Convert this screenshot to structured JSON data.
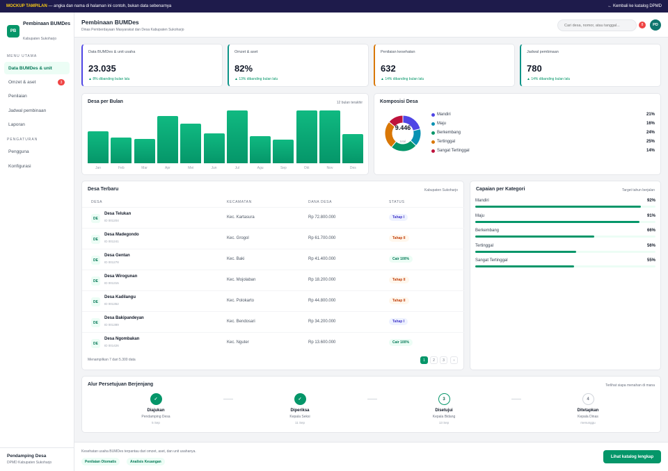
{
  "banner": {
    "tag": "MOCKUP TAMPILAN",
    "text": "— angka dan nama di halaman ini contoh, bukan data sebenarnya",
    "back": "← Kembali ke katalog DPMD"
  },
  "sidebar": {
    "logo": "PB",
    "title": "Pembinaan BUMDes",
    "subtitle": "Kabupaten Sukoharjo",
    "section_main": "MENU UTAMA",
    "section_settings": "PENGATURAN",
    "items": [
      {
        "label": "Data BUMDes & unit",
        "active": true
      },
      {
        "label": "Omzet & aset",
        "badge": "3"
      },
      {
        "label": "Penilaian"
      },
      {
        "label": "Jadwal pembinaan"
      },
      {
        "label": "Laporan"
      }
    ],
    "settings": [
      {
        "label": "Pengguna"
      },
      {
        "label": "Konfigurasi"
      }
    ],
    "user": {
      "name": "Pendamping Desa",
      "role": "DPMD Kabupaten Sukoharjo"
    }
  },
  "header": {
    "title": "Pembinaan BUMDes",
    "subtitle": "Dinas Pemberdayaan Masyarakat dan Desa Kabupaten Sukoharjo",
    "search_placeholder": "Cari desa, nomor, atau tanggal...",
    "notif": "8",
    "avatar": "PD"
  },
  "kpis": [
    {
      "label": "Data BUMDes & unit usaha",
      "value": "23.035",
      "trend": "▲ 8% dibanding bulan lalu",
      "color": "#4f46e5"
    },
    {
      "label": "Omzet & aset",
      "value": "82%",
      "trend": "▲ 13% dibanding bulan lalu",
      "color": "#0d9488"
    },
    {
      "label": "Penilaian kesehatan",
      "value": "632",
      "trend": "▲ 14% dibanding bulan lalu",
      "color": "#d97706"
    },
    {
      "label": "Jadwal pembinaan",
      "value": "780",
      "trend": "▲ 14% dibanding bulan lalu",
      "color": "#0d9488"
    }
  ],
  "bar_chart": {
    "title": "Desa per Bulan",
    "note": "12 bulan terakhir"
  },
  "donut": {
    "title": "Komposisi Desa",
    "total": "9.446",
    "total_label": "total"
  },
  "chart_data": [
    {
      "type": "bar",
      "categories": [
        "Jan",
        "Feb",
        "Mar",
        "Apr",
        "Mei",
        "Jun",
        "Jul",
        "Agu",
        "Sep",
        "Okt",
        "Nov",
        "Des"
      ],
      "values": [
        60,
        49,
        46,
        89,
        75,
        57,
        100,
        51,
        45,
        100,
        100,
        55
      ],
      "ylim": [
        0,
        100
      ]
    },
    {
      "type": "pie",
      "categories": [
        "Mandiri",
        "Maju",
        "Berkembang",
        "Tertinggal",
        "Sangat Tertinggal"
      ],
      "labels": [
        "21%",
        "16%",
        "24%",
        "25%",
        "14%"
      ],
      "values": [
        21,
        16,
        24,
        25,
        14
      ],
      "colors": [
        "#4f46e5",
        "#0891b2",
        "#059669",
        "#d97706",
        "#be123c"
      ]
    }
  ],
  "table": {
    "title": "Desa Terbaru",
    "note": "Kabupaten Sukoharjo",
    "headers": [
      "DESA",
      "KECAMATAN",
      "DANA DESA",
      "STATUS"
    ],
    "rows": [
      {
        "ini": "DE",
        "name": "Desa Telukan",
        "id": "ID 001204",
        "kec": "Kec. Kartasura",
        "dana": "Rp 72.800.000",
        "status": "Tahap I",
        "kind": "a"
      },
      {
        "ini": "DE",
        "name": "Desa Madegondo",
        "id": "ID 001241",
        "kec": "Kec. Grogol",
        "dana": "Rp 61.700.000",
        "status": "Tahap II",
        "kind": "b"
      },
      {
        "ini": "DE",
        "name": "Desa Gentan",
        "id": "ID 001278",
        "kec": "Kec. Baki",
        "dana": "Rp 41.400.000",
        "status": "Cair 100%",
        "kind": "c"
      },
      {
        "ini": "DE",
        "name": "Desa Wirogunan",
        "id": "ID 001315",
        "kec": "Kec. Mojolaban",
        "dana": "Rp 18.200.000",
        "status": "Tahap II",
        "kind": "b"
      },
      {
        "ini": "DE",
        "name": "Desa Kadilangu",
        "id": "ID 001352",
        "kec": "Kec. Polokarto",
        "dana": "Rp 44.800.000",
        "status": "Tahap II",
        "kind": "b"
      },
      {
        "ini": "DE",
        "name": "Desa Bakipandeyan",
        "id": "ID 001389",
        "kec": "Kec. Bendosari",
        "dana": "Rp 34.200.000",
        "status": "Tahap I",
        "kind": "a"
      },
      {
        "ini": "DE",
        "name": "Desa Ngombakan",
        "id": "ID 001426",
        "kec": "Kec. Nguter",
        "dana": "Rp 13.600.000",
        "status": "Cair 100%",
        "kind": "c"
      }
    ],
    "summary": "Menampilkan 7 dari 5.300 data",
    "pages": [
      "1",
      "2",
      "3",
      "›"
    ]
  },
  "progress": {
    "title": "Capaian per Kategori",
    "note": "Target tahun berjalan",
    "items": [
      {
        "label": "Mandiri",
        "value": "92%",
        "pct": 92
      },
      {
        "label": "Maju",
        "value": "91%",
        "pct": 91
      },
      {
        "label": "Berkembang",
        "value": "66%",
        "pct": 66
      },
      {
        "label": "Tertinggal",
        "value": "56%",
        "pct": 56
      },
      {
        "label": "Sangat Tertinggal",
        "value": "55%",
        "pct": 55
      }
    ]
  },
  "approval": {
    "title": "Alur Persetujuan Berjenjang",
    "note": "Terlihat siapa menahan di mana",
    "steps": [
      {
        "mark": "✓",
        "name": "Diajukan",
        "role": "Pendamping Desa",
        "date": "5 Sep",
        "state": "done"
      },
      {
        "mark": "✓",
        "name": "Diperiksa",
        "role": "Kepala Seksi",
        "date": "11 Sep",
        "state": "done"
      },
      {
        "mark": "3",
        "name": "Disetujui",
        "role": "Kepala Bidang",
        "date": "13 Sep",
        "state": "cur"
      },
      {
        "mark": "4",
        "name": "Ditetapkan",
        "role": "Kepala Dinas",
        "date": "menunggu",
        "state": "todo"
      }
    ]
  },
  "footer": {
    "note": "Kesehatan usaha BUMDes terpantau dari omzet, aset, dan unit usahanya.",
    "chips": [
      "Penilaian Otomatis",
      "Analisis Keuangan"
    ],
    "cta": "Lihat katalog lengkap"
  }
}
